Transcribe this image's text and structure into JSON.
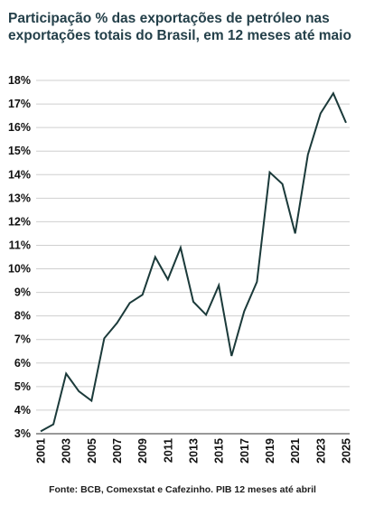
{
  "title": "Participação % das exportações de petróleo nas exportações totais do Brasil, em 12 meses até maio",
  "source": "Fonte: BCB, Comexstat e Cafezinho. PIB 12 meses até abril",
  "colors": {
    "line": "#1b3a3a",
    "grid": "#cfcfcf",
    "axis": "#333333",
    "text": "#111111"
  },
  "chart_data": {
    "type": "line",
    "title": "Participação % das exportações de petróleo nas exportações totais do Brasil, em 12 meses até maio",
    "xlabel": "",
    "ylabel": "",
    "ylim": [
      3,
      18
    ],
    "grid": true,
    "y_ticks": [
      "3%",
      "4%",
      "5%",
      "6%",
      "7%",
      "8%",
      "9%",
      "10%",
      "11%",
      "12%",
      "13%",
      "14%",
      "15%",
      "16%",
      "17%",
      "18%"
    ],
    "x_ticks": [
      "2001",
      "2003",
      "2005",
      "2007",
      "2009",
      "2011",
      "2013",
      "2015",
      "2017",
      "2019",
      "2021",
      "2023",
      "2025"
    ],
    "x": [
      2001,
      2002,
      2003,
      2004,
      2005,
      2006,
      2007,
      2008,
      2009,
      2010,
      2011,
      2012,
      2013,
      2014,
      2015,
      2016,
      2017,
      2018,
      2019,
      2020,
      2021,
      2022,
      2023,
      2024,
      2025
    ],
    "series": [
      {
        "values": [
          3.1,
          3.4,
          5.55,
          4.8,
          4.4,
          7.05,
          7.7,
          8.55,
          8.9,
          10.5,
          9.55,
          10.9,
          8.6,
          8.05,
          9.3,
          6.3,
          8.2,
          9.45,
          14.1,
          13.6,
          11.5,
          14.85,
          16.6,
          17.45,
          16.2
        ]
      }
    ]
  }
}
